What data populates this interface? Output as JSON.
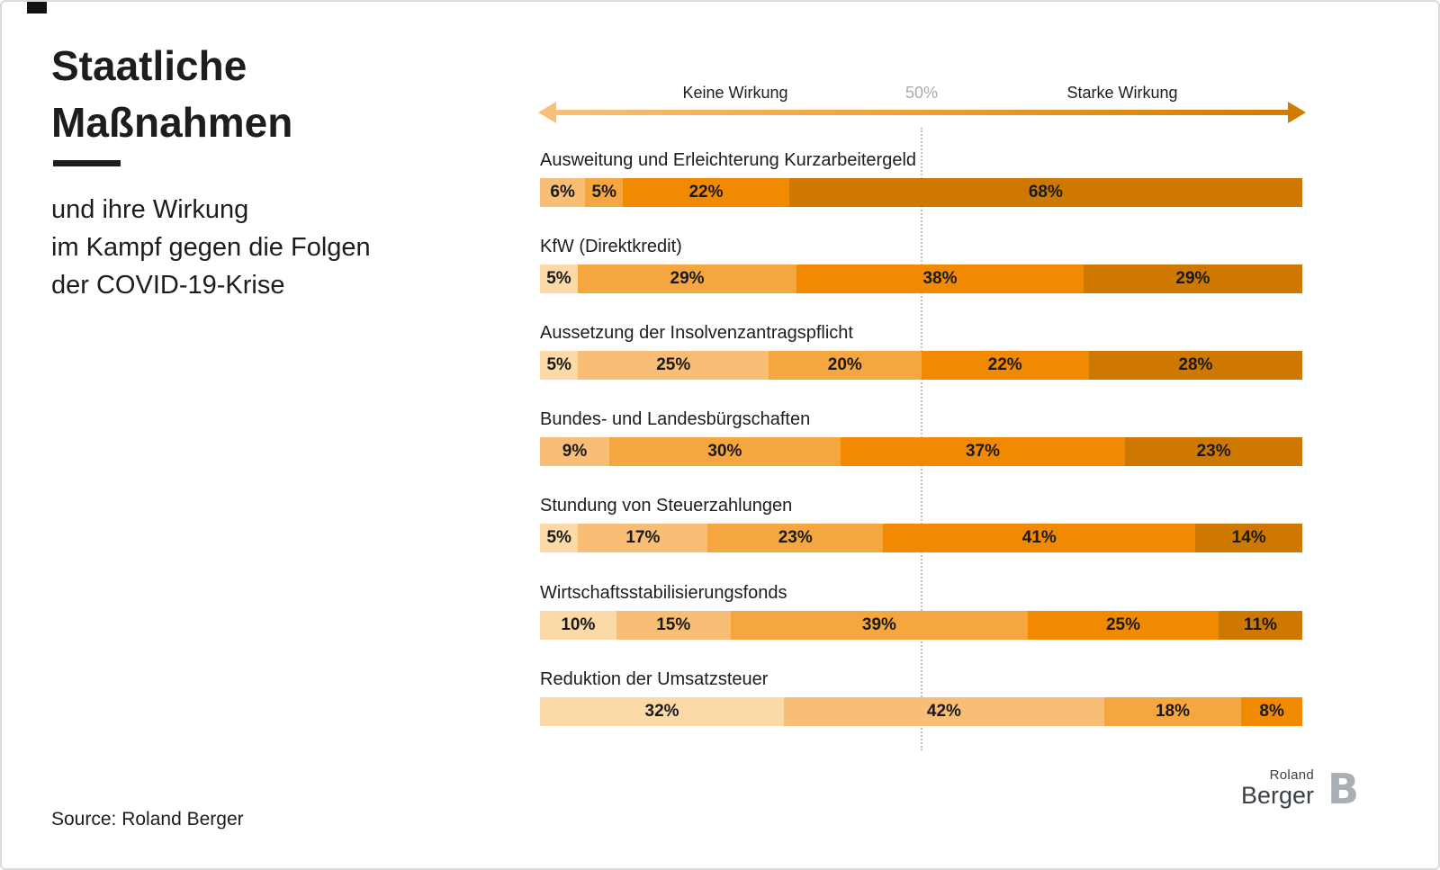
{
  "header": {
    "title_line1": "Staatliche",
    "title_line2": "Maßnahmen",
    "subtitle_lines": [
      "und ihre Wirkung",
      "im Kampf gegen die Folgen",
      "der COVID-19-Krise"
    ]
  },
  "axis": {
    "left_label": "Keine Wirkung",
    "center_label": "50%",
    "right_label": "Starke Wirkung"
  },
  "footer": {
    "source": "Source: Roland Berger",
    "logo_top": "Roland",
    "logo_bottom": "Berger",
    "logo_mark": "B"
  },
  "chart_data": {
    "type": "bar",
    "orientation": "horizontal-stacked",
    "title": "Staatliche Maßnahmen und ihre Wirkung im Kampf gegen die Folgen der COVID-19-Krise",
    "axis_labels": {
      "left": "Keine Wirkung",
      "center": "50%",
      "right": "Starke Wirkung"
    },
    "unit": "%",
    "scale_note": "segment shading runs light (keine Wirkung) to dark (starke Wirkung); dotted reference line at 50%",
    "tones": {
      "1": "#FBDAA7",
      "2": "#F8BE75",
      "3": "#F5A63E",
      "4": "#F18A00",
      "5": "#CE7800"
    },
    "rows": [
      {
        "label": "Ausweitung und Erleichterung Kurzarbeitergeld",
        "segments": [
          {
            "value": 6,
            "tone": 2
          },
          {
            "value": 5,
            "tone": 3
          },
          {
            "value": 22,
            "tone": 4
          },
          {
            "value": 68,
            "tone": 5
          }
        ]
      },
      {
        "label": "KfW (Direktkredit)",
        "segments": [
          {
            "value": 5,
            "tone": 1
          },
          {
            "value": 29,
            "tone": 3
          },
          {
            "value": 38,
            "tone": 4
          },
          {
            "value": 29,
            "tone": 5
          }
        ]
      },
      {
        "label": "Aussetzung der Insolvenzantragspflicht",
        "segments": [
          {
            "value": 5,
            "tone": 1
          },
          {
            "value": 25,
            "tone": 2
          },
          {
            "value": 20,
            "tone": 3
          },
          {
            "value": 22,
            "tone": 4
          },
          {
            "value": 28,
            "tone": 5
          }
        ]
      },
      {
        "label": "Bundes- und Landesbürgschaften",
        "segments": [
          {
            "value": 9,
            "tone": 2
          },
          {
            "value": 30,
            "tone": 3
          },
          {
            "value": 37,
            "tone": 4
          },
          {
            "value": 23,
            "tone": 5
          }
        ]
      },
      {
        "label": "Stundung von Steuerzahlungen",
        "segments": [
          {
            "value": 5,
            "tone": 1
          },
          {
            "value": 17,
            "tone": 2
          },
          {
            "value": 23,
            "tone": 3
          },
          {
            "value": 41,
            "tone": 4
          },
          {
            "value": 14,
            "tone": 5
          }
        ]
      },
      {
        "label": "Wirtschaftsstabilisierungsfonds",
        "segments": [
          {
            "value": 10,
            "tone": 1
          },
          {
            "value": 15,
            "tone": 2
          },
          {
            "value": 39,
            "tone": 3
          },
          {
            "value": 25,
            "tone": 4
          },
          {
            "value": 11,
            "tone": 5
          }
        ]
      },
      {
        "label": "Reduktion der Umsatzsteuer",
        "segments": [
          {
            "value": 32,
            "tone": 1
          },
          {
            "value": 42,
            "tone": 2
          },
          {
            "value": 18,
            "tone": 3
          },
          {
            "value": 8,
            "tone": 4
          }
        ]
      }
    ]
  }
}
